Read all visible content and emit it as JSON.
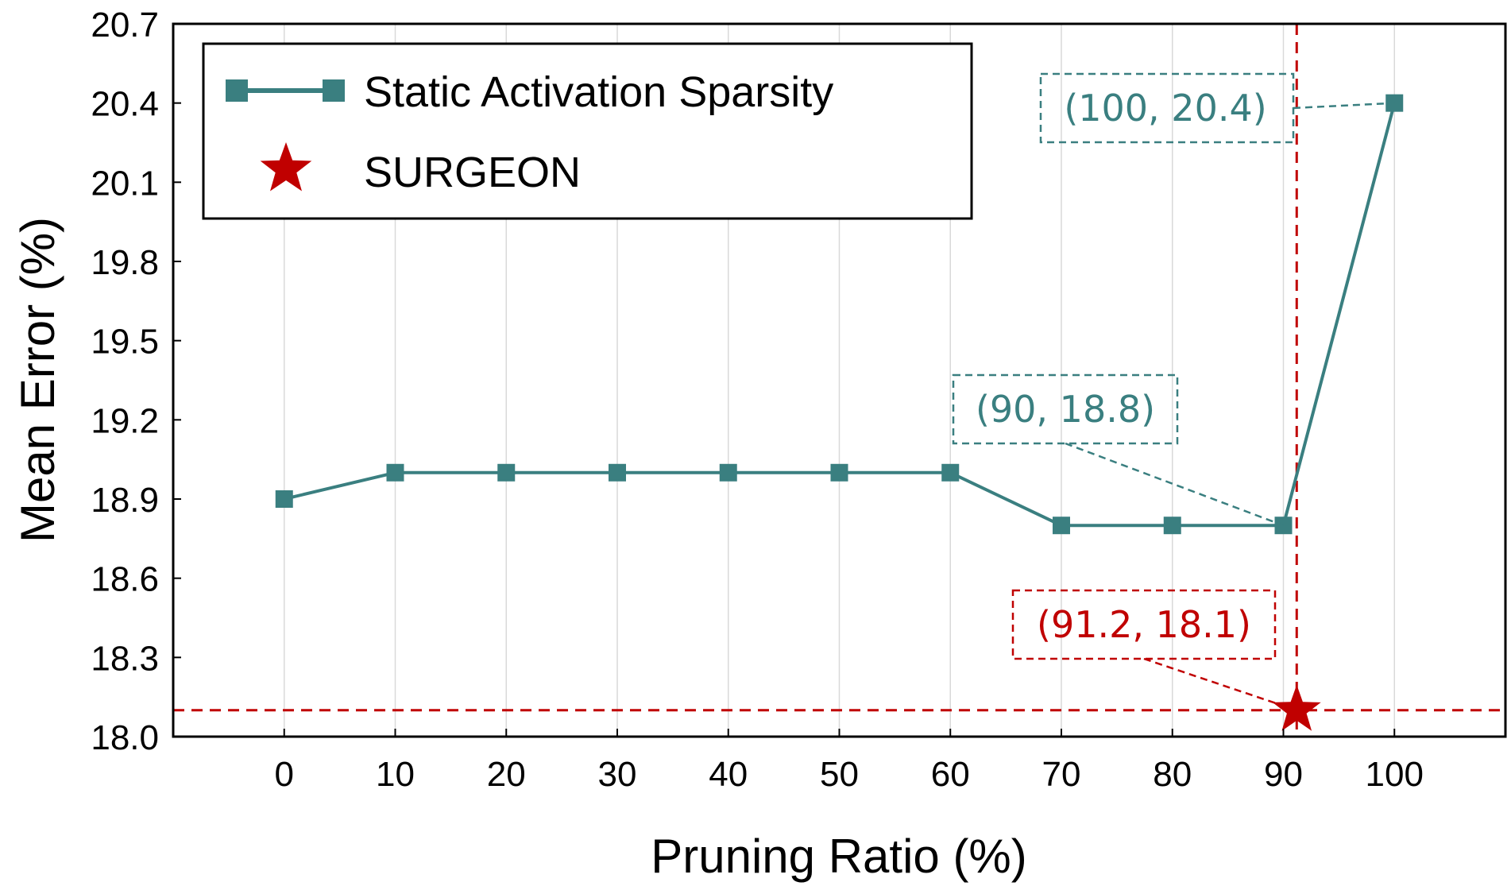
{
  "chart_data": {
    "type": "line",
    "xlabel": "Pruning Ratio (%)",
    "ylabel": "Mean Error (%)",
    "xticks": [
      "0",
      "10",
      "20",
      "30",
      "40",
      "50",
      "60",
      "70",
      "80",
      "90",
      "100"
    ],
    "yticks": [
      "18.0",
      "18.3",
      "18.6",
      "18.9",
      "19.2",
      "19.5",
      "19.8",
      "20.1",
      "20.4",
      "20.7"
    ],
    "xlim": [
      -10,
      110
    ],
    "ylim": [
      18.0,
      20.7
    ],
    "grid": "vertical",
    "legend_position": "top-left",
    "series": [
      {
        "name": "Static Activation Sparsity",
        "color": "#3a7f80",
        "marker": "square",
        "x": [
          0,
          10,
          20,
          30,
          40,
          50,
          60,
          70,
          80,
          90,
          100
        ],
        "y": [
          18.9,
          19.0,
          19.0,
          19.0,
          19.0,
          19.0,
          19.0,
          18.8,
          18.8,
          18.8,
          20.4
        ]
      },
      {
        "name": "SURGEON",
        "color": "#c00000",
        "marker": "star",
        "x": [
          91.2
        ],
        "y": [
          18.1
        ]
      }
    ],
    "reference_lines": [
      {
        "orientation": "horizontal",
        "value": 18.1,
        "color": "#c00000",
        "style": "dashed"
      },
      {
        "orientation": "vertical",
        "value": 91.2,
        "color": "#c00000",
        "style": "dashed"
      }
    ],
    "annotations": [
      {
        "text": "(100, 20.4)",
        "x": 100,
        "y": 20.4,
        "color": "#3a7f80"
      },
      {
        "text": "(90, 18.8)",
        "x": 90,
        "y": 18.8,
        "color": "#3a7f80"
      },
      {
        "text": "(91.2, 18.1)",
        "x": 91.2,
        "y": 18.1,
        "color": "#c00000"
      }
    ]
  }
}
